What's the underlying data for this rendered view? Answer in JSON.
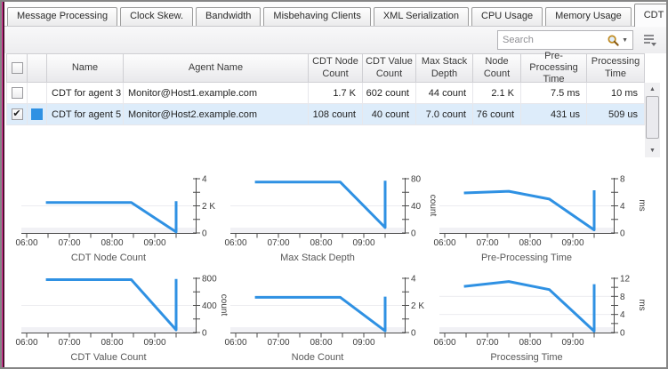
{
  "tabs": [
    {
      "label": "Message Processing",
      "active": false
    },
    {
      "label": "Clock Skew.",
      "active": false
    },
    {
      "label": "Bandwidth",
      "active": false
    },
    {
      "label": "Misbehaving Clients",
      "active": false
    },
    {
      "label": "XML Serialization",
      "active": false
    },
    {
      "label": "CPU Usage",
      "active": false
    },
    {
      "label": "Memory Usage",
      "active": false
    },
    {
      "label": "CDT Submission",
      "active": true
    }
  ],
  "toolbar": {
    "search_placeholder": "Search"
  },
  "table": {
    "columns": {
      "name": "Name",
      "agent": "Agent Name",
      "cdt_node": "CDT Node Count",
      "cdt_value": "CDT Value Count",
      "max_stack": "Max Stack Depth",
      "node": "Node Count",
      "pre": "Pre-Processing Time",
      "proc": "Processing Time"
    },
    "rows": [
      {
        "check": "",
        "selected": false,
        "swatch_color": "",
        "name": "CDT for agent 3",
        "agent": "Monitor@Host1.example.com",
        "cdt_node": "1.7 K",
        "cdt_value": "602 count",
        "max_stack": "44 count",
        "node": "2.1 K",
        "pre": "7.5 ms",
        "proc": "10 ms"
      },
      {
        "check": "✔",
        "selected": true,
        "swatch_color": "#2f91e3",
        "name": "CDT for agent 5",
        "agent": "Monitor@Host2.example.com",
        "cdt_node": "108 count",
        "cdt_value": "40 count",
        "max_stack": "7.0 count",
        "node": "76 count",
        "pre": "431 us",
        "proc": "509 us"
      }
    ]
  },
  "colors": {
    "series_blue": "#2f91e3",
    "selected_row": "#ddecfa"
  },
  "chart_data": [
    {
      "type": "line",
      "title": "CDT Node Count",
      "unit": "",
      "ymax": 4,
      "yticks": [
        0,
        1,
        2,
        3,
        4
      ],
      "ylabels": {
        "0": "0",
        "2": "2 K",
        "4": "4"
      },
      "xlim": [
        6,
        9.92
      ],
      "x_label_hours": [
        6,
        7,
        8,
        9
      ],
      "x_labels": [
        "06:00",
        "07:00",
        "08:00",
        "09:00"
      ],
      "points": [
        [
          6.45,
          2.25
        ],
        [
          8.45,
          2.25
        ],
        [
          9.5,
          0.07
        ],
        [
          9.5,
          2.35
        ]
      ]
    },
    {
      "type": "line",
      "title": "Max Stack Depth",
      "unit": "count",
      "ymax": 80,
      "yticks": [
        0,
        20,
        40,
        60,
        80
      ],
      "ylabels": {
        "0": "0",
        "40": "40",
        "80": "80"
      },
      "xlim": [
        6,
        9.92
      ],
      "x_label_hours": [
        6,
        7,
        8,
        9
      ],
      "x_labels": [
        "06:00",
        "07:00",
        "08:00",
        "09:00"
      ],
      "points": [
        [
          6.45,
          75
        ],
        [
          8.45,
          75
        ],
        [
          9.5,
          8
        ],
        [
          9.5,
          77
        ]
      ]
    },
    {
      "type": "line",
      "title": "Pre-Processing Time",
      "unit": "ms",
      "ymax": 8,
      "yticks": [
        0,
        2,
        4,
        6,
        8
      ],
      "ylabels": {
        "0": "0",
        "4": "4",
        "8": "8"
      },
      "xlim": [
        6,
        9.92
      ],
      "x_label_hours": [
        6,
        7,
        8,
        9
      ],
      "x_labels": [
        "06:00",
        "07:00",
        "08:00",
        "09:00"
      ],
      "points": [
        [
          6.45,
          5.9
        ],
        [
          7.5,
          6.15
        ],
        [
          8.45,
          5.0
        ],
        [
          9.5,
          0.45
        ],
        [
          9.5,
          6.3
        ]
      ]
    },
    {
      "type": "line",
      "title": "CDT Value Count",
      "unit": "count",
      "ymax": 800,
      "yticks": [
        0,
        200,
        400,
        600,
        800
      ],
      "ylabels": {
        "0": "0",
        "400": "400",
        "800": "800"
      },
      "xlim": [
        6,
        9.92
      ],
      "x_label_hours": [
        6,
        7,
        8,
        9
      ],
      "x_labels": [
        "06:00",
        "07:00",
        "08:00",
        "09:00"
      ],
      "points": [
        [
          6.45,
          780
        ],
        [
          8.45,
          780
        ],
        [
          9.5,
          40
        ],
        [
          9.5,
          790
        ]
      ]
    },
    {
      "type": "line",
      "title": "Node Count",
      "unit": "",
      "ymax": 4,
      "yticks": [
        0,
        1,
        2,
        3,
        4
      ],
      "ylabels": {
        "0": "0",
        "2": "2 K",
        "4": "4"
      },
      "xlim": [
        6,
        9.92
      ],
      "x_label_hours": [
        6,
        7,
        8,
        9
      ],
      "x_labels": [
        "06:00",
        "07:00",
        "08:00",
        "09:00"
      ],
      "points": [
        [
          6.45,
          2.6
        ],
        [
          8.45,
          2.6
        ],
        [
          9.5,
          0.12
        ],
        [
          9.5,
          2.65
        ]
      ]
    },
    {
      "type": "line",
      "title": "Processing Time",
      "unit": "ms",
      "ymax": 12,
      "yticks": [
        0,
        2,
        4,
        6,
        8,
        10,
        12
      ],
      "ylabels": {
        "0": "0",
        "4": "4",
        "8": "8",
        "12": "12"
      },
      "xlim": [
        6,
        9.92
      ],
      "x_label_hours": [
        6,
        7,
        8,
        9
      ],
      "x_labels": [
        "06:00",
        "07:00",
        "08:00",
        "09:00"
      ],
      "points": [
        [
          6.45,
          10.2
        ],
        [
          7.5,
          11.3
        ],
        [
          8.45,
          9.5
        ],
        [
          9.5,
          0.3
        ],
        [
          9.5,
          10.7
        ]
      ]
    }
  ]
}
